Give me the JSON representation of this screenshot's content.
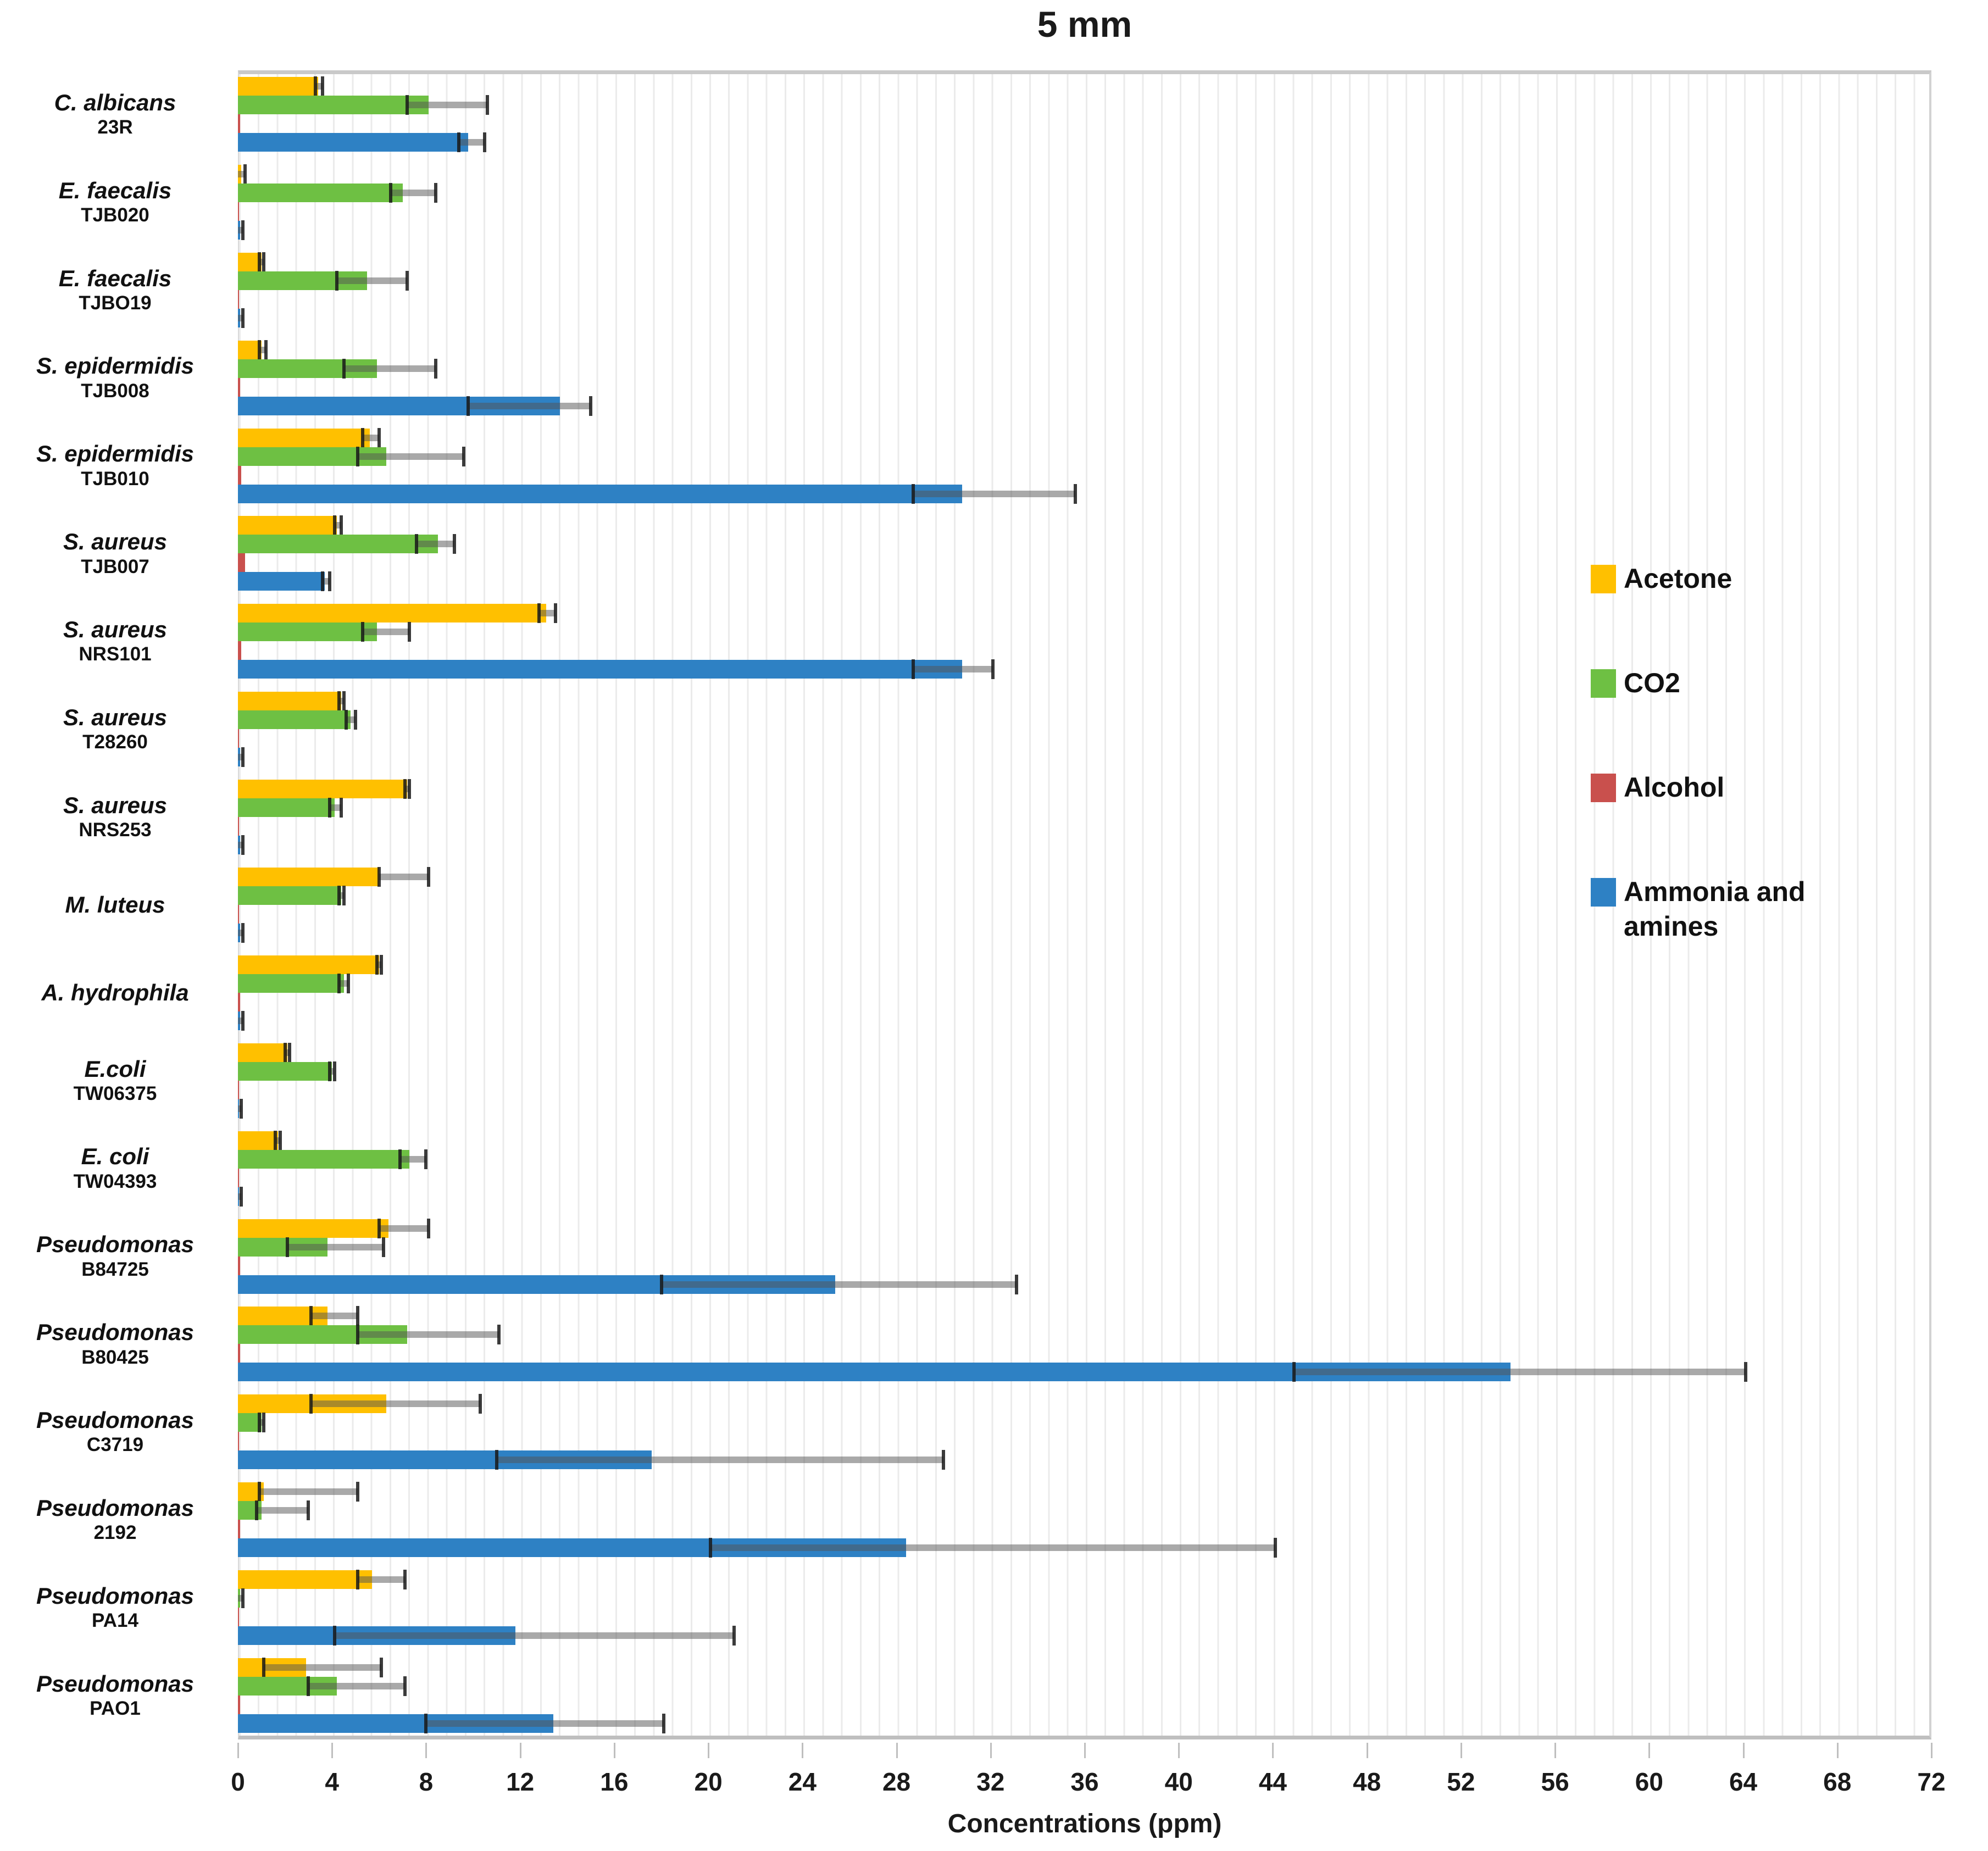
{
  "chart_data": {
    "type": "bar",
    "orientation": "horizontal-grouped",
    "title": "5 mm",
    "xlabel": "Concentrations (ppm)",
    "xlim": [
      0,
      72
    ],
    "x_major_tick": 4,
    "x_minor_gridline": 0.8,
    "grid": "minor-vertical-light",
    "legend_position": "inside-right",
    "series": [
      {
        "name": "Acetone",
        "color": "#FFC000"
      },
      {
        "name": "CO2",
        "color": "#6EC043"
      },
      {
        "name": "Alcohol",
        "color": "#C9504D"
      },
      {
        "name": "Ammonia and amines",
        "color": "#2E81C4"
      }
    ],
    "error_bar_color": "#545454",
    "rows": [
      {
        "species": "C. albicans",
        "strain": "23R",
        "values": [
          3.4,
          8.1,
          0.1,
          9.8
        ],
        "errors": [
          [
            3.3,
            3.6
          ],
          [
            7.2,
            10.6
          ],
          null,
          [
            9.4,
            10.5
          ]
        ]
      },
      {
        "species": "E. faecalis",
        "strain": "TJB020",
        "values": [
          0.15,
          7.0,
          0.05,
          0.1
        ],
        "errors": [
          [
            0,
            0.3
          ],
          [
            6.5,
            8.4
          ],
          null,
          [
            0,
            0.2
          ]
        ]
      },
      {
        "species": "E. faecalis",
        "strain": "TJBO19",
        "values": [
          1.0,
          5.5,
          0.05,
          0.1
        ],
        "errors": [
          [
            0.9,
            1.1
          ],
          [
            4.2,
            7.2
          ],
          null,
          [
            0,
            0.2
          ]
        ]
      },
      {
        "species": "S. epidermidis",
        "strain": "TJB008",
        "values": [
          1.0,
          5.9,
          0.1,
          13.7
        ],
        "errors": [
          [
            0.9,
            1.2
          ],
          [
            4.5,
            8.4
          ],
          null,
          [
            9.8,
            15.0
          ]
        ]
      },
      {
        "species": "S. epidermidis",
        "strain": "TJB010",
        "values": [
          5.6,
          6.3,
          0.15,
          30.8
        ],
        "errors": [
          [
            5.3,
            6.0
          ],
          [
            5.1,
            9.6
          ],
          null,
          [
            28.7,
            35.6
          ]
        ]
      },
      {
        "species": "S. aureus",
        "strain": "TJB007",
        "values": [
          4.2,
          8.5,
          0.3,
          3.7
        ],
        "errors": [
          [
            4.1,
            4.4
          ],
          [
            7.6,
            9.2
          ],
          null,
          [
            3.6,
            3.9
          ]
        ]
      },
      {
        "species": "S. aureus",
        "strain": "NRS101",
        "values": [
          13.1,
          5.9,
          0.15,
          30.8
        ],
        "errors": [
          [
            12.8,
            13.5
          ],
          [
            5.3,
            7.3
          ],
          null,
          [
            28.7,
            32.1
          ]
        ]
      },
      {
        "species": "S. aureus",
        "strain": "T28260",
        "values": [
          4.4,
          4.8,
          0.05,
          0.1
        ],
        "errors": [
          [
            4.3,
            4.5
          ],
          [
            4.6,
            5.0
          ],
          null,
          [
            0,
            0.2
          ]
        ]
      },
      {
        "species": "S. aureus",
        "strain": "NRS253",
        "values": [
          7.2,
          4.1,
          0.05,
          0.1
        ],
        "errors": [
          [
            7.1,
            7.3
          ],
          [
            3.9,
            4.4
          ],
          null,
          [
            0,
            0.2
          ]
        ]
      },
      {
        "species": "M. luteus",
        "strain": "",
        "values": [
          6.0,
          4.4,
          0.05,
          0.1
        ],
        "errors": [
          [
            6.0,
            8.1
          ],
          [
            4.3,
            4.5
          ],
          null,
          [
            0,
            0.2
          ]
        ]
      },
      {
        "species": "A. hydrophila",
        "strain": "",
        "values": [
          6.0,
          4.5,
          0.1,
          0.1
        ],
        "errors": [
          [
            5.9,
            6.1
          ],
          [
            4.3,
            4.7
          ],
          null,
          [
            0,
            0.2
          ]
        ]
      },
      {
        "species": "E.coli",
        "strain": "TW06375",
        "values": [
          2.1,
          4.0,
          0.05,
          0.05
        ],
        "errors": [
          [
            2.0,
            2.2
          ],
          [
            3.9,
            4.1
          ],
          null,
          [
            0,
            0.15
          ]
        ]
      },
      {
        "species": "E. coli",
        "strain": "TW04393",
        "values": [
          1.7,
          7.3,
          0.05,
          0.05
        ],
        "errors": [
          [
            1.6,
            1.8
          ],
          [
            6.9,
            8.0
          ],
          null,
          [
            0,
            0.15
          ]
        ]
      },
      {
        "species": "Pseudomonas",
        "strain": "B84725",
        "values": [
          6.4,
          3.8,
          0.1,
          25.4
        ],
        "errors": [
          [
            6.0,
            8.1
          ],
          [
            2.1,
            6.2
          ],
          null,
          [
            18.0,
            33.1
          ]
        ]
      },
      {
        "species": "Pseudomonas",
        "strain": "B80425",
        "values": [
          3.8,
          7.2,
          0.1,
          54.1
        ],
        "errors": [
          [
            3.1,
            5.1
          ],
          [
            5.1,
            11.1
          ],
          null,
          [
            44.9,
            64.1
          ]
        ]
      },
      {
        "species": "Pseudomonas",
        "strain": "C3719",
        "values": [
          6.3,
          1.0,
          0.05,
          17.6
        ],
        "errors": [
          [
            3.1,
            10.3
          ],
          [
            0.9,
            1.1
          ],
          null,
          [
            11.0,
            30.0
          ]
        ]
      },
      {
        "species": "Pseudomonas",
        "strain": "2192",
        "values": [
          1.1,
          1.0,
          0.1,
          28.4
        ],
        "errors": [
          [
            0.9,
            5.1
          ],
          [
            0.8,
            3.0
          ],
          null,
          [
            20.1,
            44.1
          ]
        ]
      },
      {
        "species": "Pseudomonas",
        "strain": "PA14",
        "values": [
          5.7,
          0.1,
          0.05,
          11.8
        ],
        "errors": [
          [
            5.1,
            7.1
          ],
          [
            0,
            0.2
          ],
          null,
          [
            4.1,
            21.1
          ]
        ]
      },
      {
        "species": "Pseudomonas",
        "strain": "PAO1",
        "values": [
          2.9,
          4.2,
          0.1,
          13.4
        ],
        "errors": [
          [
            1.1,
            6.1
          ],
          [
            3.0,
            7.1
          ],
          null,
          [
            8.0,
            18.1
          ]
        ]
      }
    ],
    "x_tick_labels": [
      0,
      4,
      8,
      12,
      16,
      20,
      24,
      28,
      32,
      36,
      40,
      44,
      48,
      52,
      56,
      60,
      64,
      68,
      72
    ]
  }
}
